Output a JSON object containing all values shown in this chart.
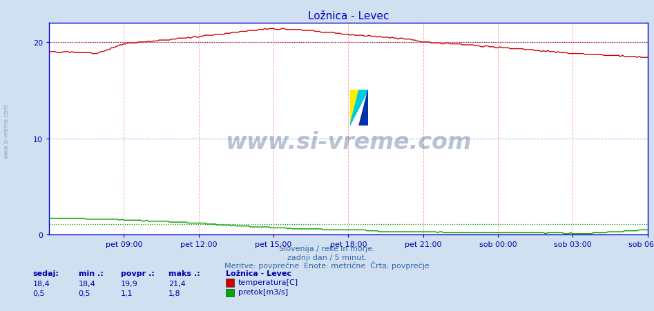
{
  "title": "Ložnica - Levec",
  "bg_color": "#d0e0f0",
  "plot_bg_color": "#ffffff",
  "grid_color_h": "#aaaaff",
  "grid_color_v": "#ffaaaa",
  "x_labels": [
    "pet 09:00",
    "pet 12:00",
    "pet 15:00",
    "pet 18:00",
    "pet 21:00",
    "sob 00:00",
    "sob 03:00",
    "sob 06:00"
  ],
  "ylim": [
    0,
    22
  ],
  "yticks": [
    0,
    10,
    20
  ],
  "dotted_line_temp": 20.0,
  "dotted_line_flow": 1.1,
  "footer_line1": "Slovenija / reke in morje.",
  "footer_line2": "zadnji dan / 5 minut.",
  "footer_line3": "Meritve: povprečne  Enote: metrične  Črta: povprečje",
  "stats_headers": [
    "sedaj:",
    "min .:",
    "povpr .:",
    "maks .:"
  ],
  "stats_temp": [
    18.4,
    18.4,
    19.9,
    21.4
  ],
  "stats_flow": [
    0.5,
    0.5,
    1.1,
    1.8
  ],
  "legend_title": "Ložnica - Levec",
  "legend_items": [
    "temperatura[C]",
    "pretok[m3/s]"
  ],
  "legend_colors": [
    "#cc0000",
    "#00aa00"
  ],
  "watermark_text": "www.si-vreme.com",
  "watermark_color": "#1a3a6a",
  "watermark_alpha": 0.3,
  "temp_color": "#cc0000",
  "flow_color": "#009900",
  "title_color": "#0000cc",
  "axis_color": "#0000cc",
  "label_color": "#0000aa",
  "footer_color": "#3366aa",
  "sidebar_text": "www.si-vreme.com",
  "sidebar_color": "#7799bb",
  "n_points": 289
}
